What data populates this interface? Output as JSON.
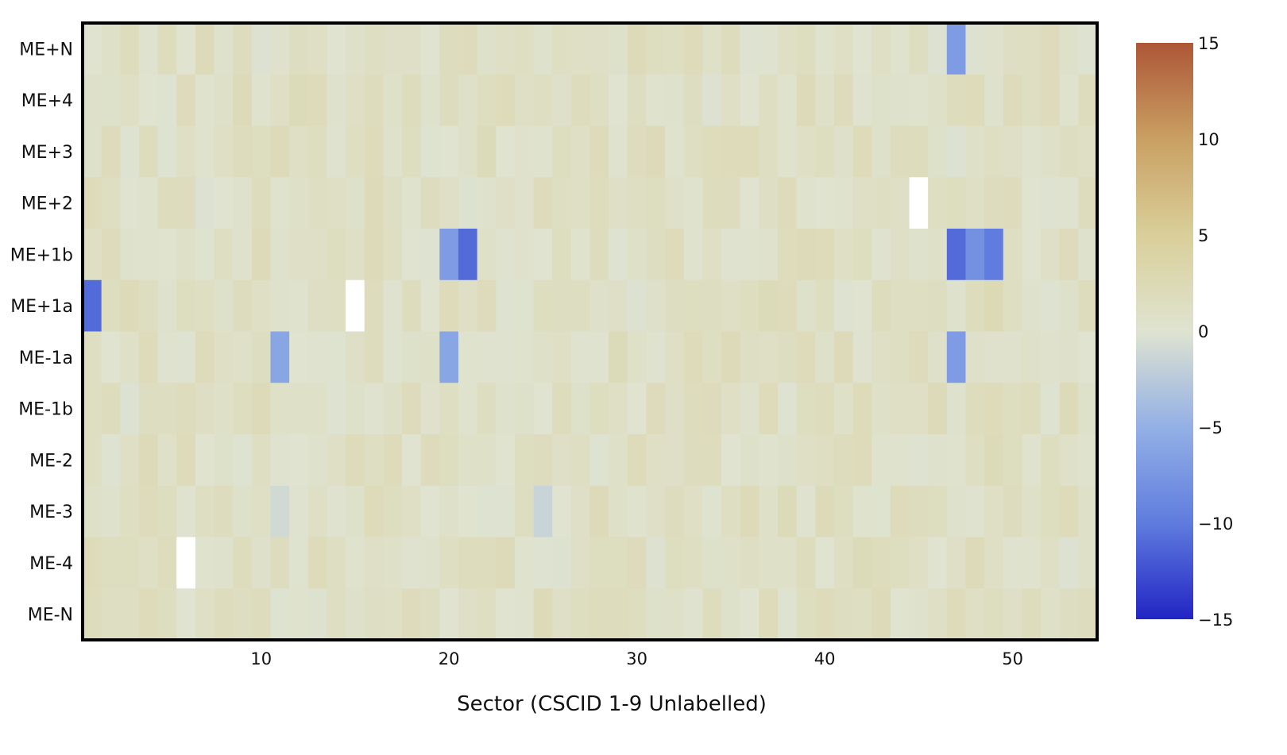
{
  "chart_data": {
    "type": "heatmap",
    "title": "",
    "xlabel": "Sector (CSCID 1-9 Unlabelled)",
    "ylabel": "",
    "rows": [
      "ME+N",
      "ME+4",
      "ME+3",
      "ME+2",
      "ME+1b",
      "ME+1a",
      "ME-1a",
      "ME-1b",
      "ME-2",
      "ME-3",
      "ME-4",
      "ME-N"
    ],
    "x_range": [
      1,
      54
    ],
    "x_ticks": [
      "10",
      "20",
      "30",
      "40",
      "50"
    ],
    "x_tick_values": [
      10,
      20,
      30,
      40,
      50
    ],
    "colorbar": {
      "min": -15,
      "max": 15,
      "ticks": [
        "15",
        "10",
        "5",
        "0",
        "−5",
        "−10",
        "−15"
      ],
      "tick_values": [
        15,
        10,
        5,
        0,
        -5,
        -10,
        -15
      ]
    },
    "default_value": 1,
    "outlier_cells": [
      {
        "row": "ME+N",
        "col": 47,
        "value": -7
      },
      {
        "row": "ME+2",
        "col": 45,
        "value": null
      },
      {
        "row": "ME+1b",
        "col": 20,
        "value": -7
      },
      {
        "row": "ME+1b",
        "col": 21,
        "value": -11
      },
      {
        "row": "ME+1b",
        "col": 47,
        "value": -11
      },
      {
        "row": "ME+1b",
        "col": 48,
        "value": -8
      },
      {
        "row": "ME+1b",
        "col": 49,
        "value": -10
      },
      {
        "row": "ME+1a",
        "col": 1,
        "value": -11
      },
      {
        "row": "ME+1a",
        "col": 15,
        "value": null
      },
      {
        "row": "ME-1a",
        "col": 11,
        "value": -6
      },
      {
        "row": "ME-1a",
        "col": 20,
        "value": -6
      },
      {
        "row": "ME-1a",
        "col": 47,
        "value": -7
      },
      {
        "row": "ME-3",
        "col": 11,
        "value": -1
      },
      {
        "row": "ME-3",
        "col": 25,
        "value": -1.5
      },
      {
        "row": "ME-4",
        "col": 6,
        "value": null
      },
      {
        "row": "ME+1a",
        "col": 49,
        "value": 2.5
      },
      {
        "row": "ME-1a",
        "col": 39,
        "value": 2
      },
      {
        "row": "ME+N",
        "col": 33,
        "value": 2
      }
    ],
    "colors": {
      "scale": [
        "#2125c4",
        "#5f7cde",
        "#93b0e6",
        "#dfe3d0",
        "#d9cf9a",
        "#c9a063",
        "#ad5636"
      ],
      "missing": "#ffffff",
      "frame": "#000000"
    }
  }
}
